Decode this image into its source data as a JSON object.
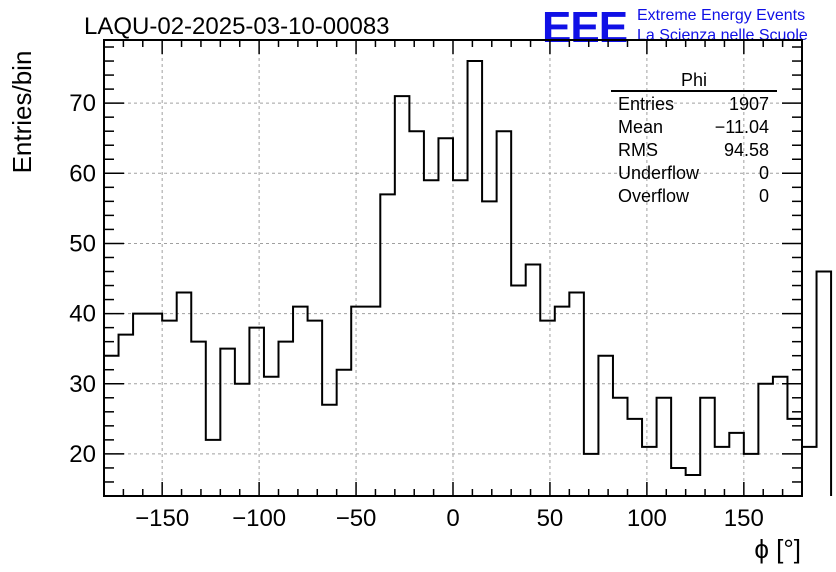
{
  "chart_data": {
    "type": "histogram",
    "title": "LAQU-02-2025-03-10-00083",
    "xlabel": "ϕ [°]",
    "ylabel": "Entries/bin",
    "xlim": [
      -180,
      180
    ],
    "ylim": [
      14,
      79
    ],
    "x_ticks": [
      -150,
      -100,
      -50,
      0,
      50,
      100,
      150
    ],
    "x_tick_labels": [
      "−150",
      "−100",
      "−50",
      "0",
      "50",
      "100",
      "150"
    ],
    "y_ticks": [
      20,
      30,
      40,
      50,
      60,
      70
    ],
    "y_tick_labels": [
      "20",
      "30",
      "40",
      "50",
      "60",
      "70"
    ],
    "bin_width": 7.5,
    "bin_start": -180,
    "values": [
      34,
      37,
      40,
      40,
      39,
      43,
      36,
      22,
      35,
      30,
      38,
      31,
      36,
      41,
      39,
      27,
      32,
      41,
      41,
      57,
      71,
      66,
      59,
      65,
      59,
      76,
      56,
      66,
      44,
      47,
      39,
      41,
      43,
      20,
      34,
      28,
      25,
      21,
      28,
      18,
      17,
      28,
      21,
      23,
      20,
      30,
      31,
      25,
      21,
      46
    ],
    "grid": true,
    "line_color": "#000000"
  },
  "brand": {
    "logo": "EEE",
    "line1": "Extreme Energy Events",
    "line2": "La Scienza nelle Scuole",
    "color": "#1010e6"
  },
  "stats": {
    "name": "Phi",
    "rows": [
      {
        "label": "Entries",
        "value": "1907"
      },
      {
        "label": "Mean",
        "value": "−11.04"
      },
      {
        "label": "RMS",
        "value": "94.58"
      },
      {
        "label": "Underflow",
        "value": "0"
      },
      {
        "label": "Overflow",
        "value": "0"
      }
    ]
  }
}
